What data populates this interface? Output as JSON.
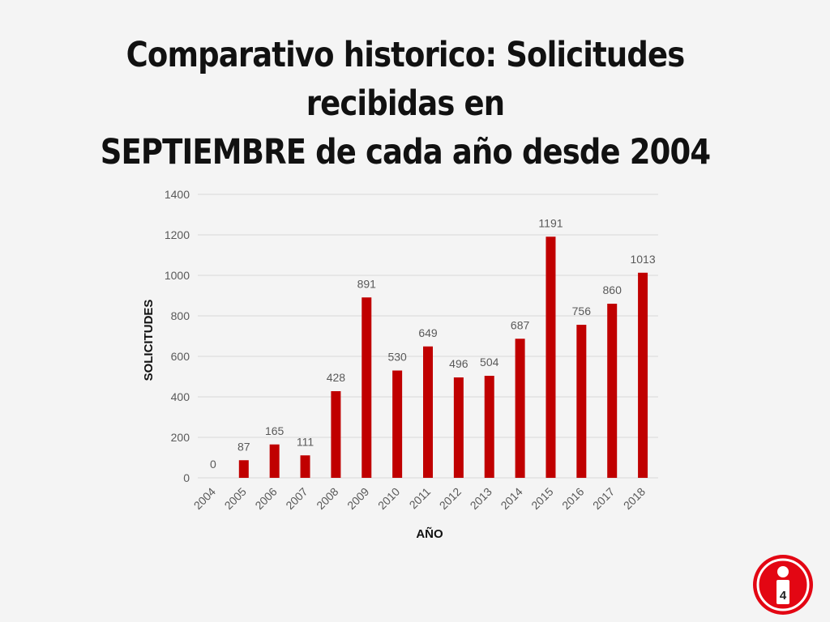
{
  "slide": {
    "title_line1": "Comparativo historico: Solicitudes recibidas en",
    "title_line2": "SEPTIEMBRE de cada año desde 2004",
    "page_number": "4",
    "logo_icon": "info-i-icon"
  },
  "colors": {
    "bar": "#c00000",
    "grid": "#d9d9d9",
    "logo": "#e30613"
  },
  "chart_data": {
    "type": "bar",
    "categories": [
      "2004",
      "2005",
      "2006",
      "2007",
      "2008",
      "2009",
      "2010",
      "2011",
      "2012",
      "2013",
      "2014",
      "2015",
      "2016",
      "2017",
      "2018"
    ],
    "values": [
      0,
      87,
      165,
      111,
      428,
      891,
      530,
      649,
      496,
      504,
      687,
      1191,
      756,
      860,
      1013
    ],
    "xlabel": "AÑO",
    "ylabel": "SOLICITUDES",
    "ylim": [
      0,
      1400
    ],
    "yticks": [
      0,
      200,
      400,
      600,
      800,
      1000,
      1200,
      1400
    ],
    "grid": true,
    "data_labels": true
  }
}
